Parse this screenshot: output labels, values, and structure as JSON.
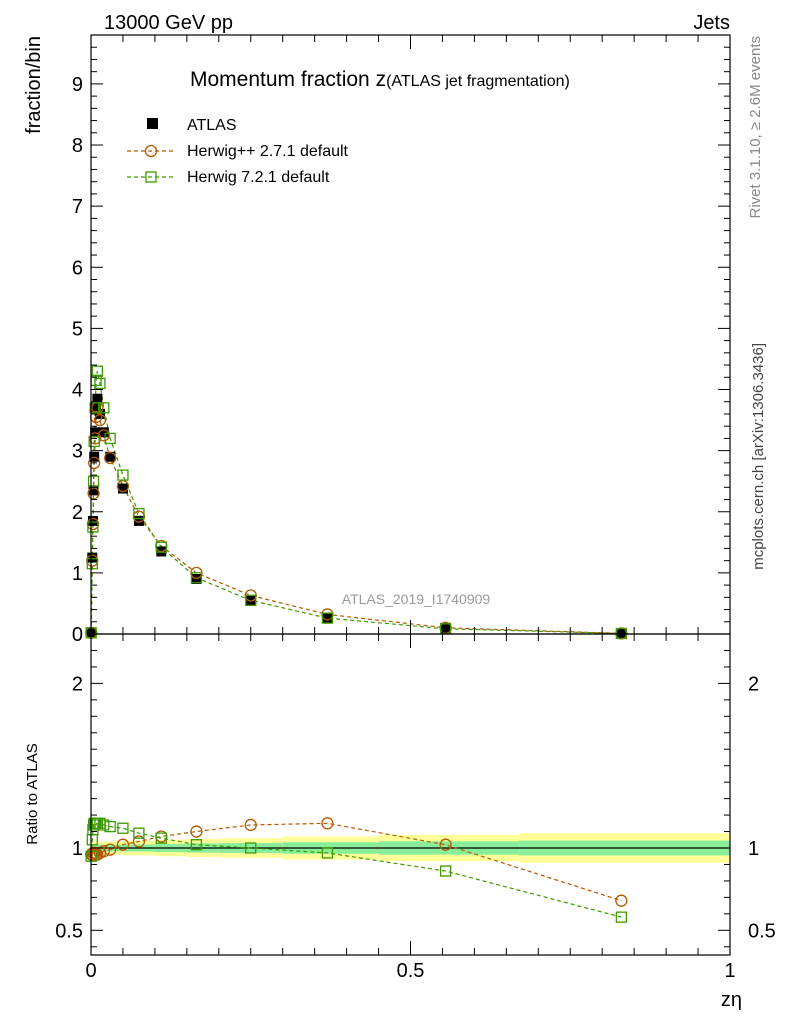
{
  "header": {
    "left": "13000 GeV pp",
    "right": "Jets"
  },
  "side_labels": {
    "rivet": "Rivet 3.1.10, ≥ 2.6M events",
    "mcplots": "mcplots.cern.ch [arXiv:1306.3436]"
  },
  "analysis_id": "ATLAS_2019_I1740909",
  "chart_data": {
    "type": "scatter",
    "title": "Momentum fraction z",
    "subtitle": "(ATLAS jet fragmentation)",
    "ylabel_main": "fraction/bin",
    "ylabel_ratio": "Ratio to ATLAS",
    "xlabel": "zη",
    "xlim": [
      0,
      1
    ],
    "ylim_main": [
      0,
      9.8
    ],
    "ylim_ratio": [
      0.35,
      2.3
    ],
    "x_ticks": [
      "0",
      "0.5",
      "1"
    ],
    "y_ticks_main": [
      "0",
      "1",
      "2",
      "3",
      "4",
      "5",
      "6",
      "7",
      "8",
      "9"
    ],
    "y_ticks_ratio": [
      "0.5",
      "1",
      "2"
    ],
    "legend_position": "top-left",
    "x": [
      0.0003,
      0.002,
      0.003,
      0.004,
      0.005,
      0.0065,
      0.008,
      0.01,
      0.014,
      0.02,
      0.03,
      0.05,
      0.075,
      0.11,
      0.165,
      0.25,
      0.37,
      0.555,
      0.83
    ],
    "series": [
      {
        "name": "ATLAS",
        "color": "#000000",
        "marker": "filled-square",
        "values": [
          0.02,
          1.25,
          1.85,
          2.35,
          2.9,
          3.3,
          3.7,
          3.85,
          3.6,
          3.3,
          2.9,
          2.38,
          1.85,
          1.35,
          0.9,
          0.55,
          0.27,
          0.1,
          0.015
        ]
      },
      {
        "name": "Herwig++ 2.7.1 default",
        "color": "#b35900",
        "marker": "open-circle",
        "values": [
          0.02,
          1.2,
          1.8,
          2.3,
          2.8,
          3.2,
          3.55,
          3.7,
          3.5,
          3.25,
          2.88,
          2.42,
          1.92,
          1.44,
          1.0,
          0.63,
          0.32,
          0.102,
          0.01
        ],
        "ratio": [
          0.96,
          0.96,
          0.97,
          0.97,
          0.97,
          0.97,
          0.96,
          0.96,
          0.97,
          0.98,
          0.99,
          1.02,
          1.04,
          1.07,
          1.1,
          1.14,
          1.15,
          1.02,
          0.68
        ]
      },
      {
        "name": "Herwig 7.2.1 default",
        "color": "#3d9a00",
        "marker": "open-square",
        "values": [
          0.02,
          1.15,
          1.75,
          2.5,
          3.15,
          3.7,
          4.15,
          4.3,
          4.1,
          3.7,
          3.2,
          2.6,
          1.97,
          1.42,
          0.92,
          0.55,
          0.26,
          0.085,
          0.009
        ],
        "ratio": [
          0.95,
          1.05,
          1.11,
          1.14,
          1.15,
          1.15,
          1.15,
          1.15,
          1.15,
          1.14,
          1.13,
          1.12,
          1.09,
          1.06,
          1.02,
          1.0,
          0.97,
          0.86,
          0.58
        ]
      }
    ],
    "ratio_band": {
      "edges": [
        0,
        0.05,
        0.1,
        0.15,
        0.2,
        0.3,
        0.45,
        0.67,
        1.0
      ],
      "inner": [
        0.02,
        0.022,
        0.025,
        0.028,
        0.03,
        0.035,
        0.04,
        0.045
      ],
      "outer": [
        0.04,
        0.045,
        0.05,
        0.055,
        0.06,
        0.07,
        0.08,
        0.09
      ]
    }
  }
}
